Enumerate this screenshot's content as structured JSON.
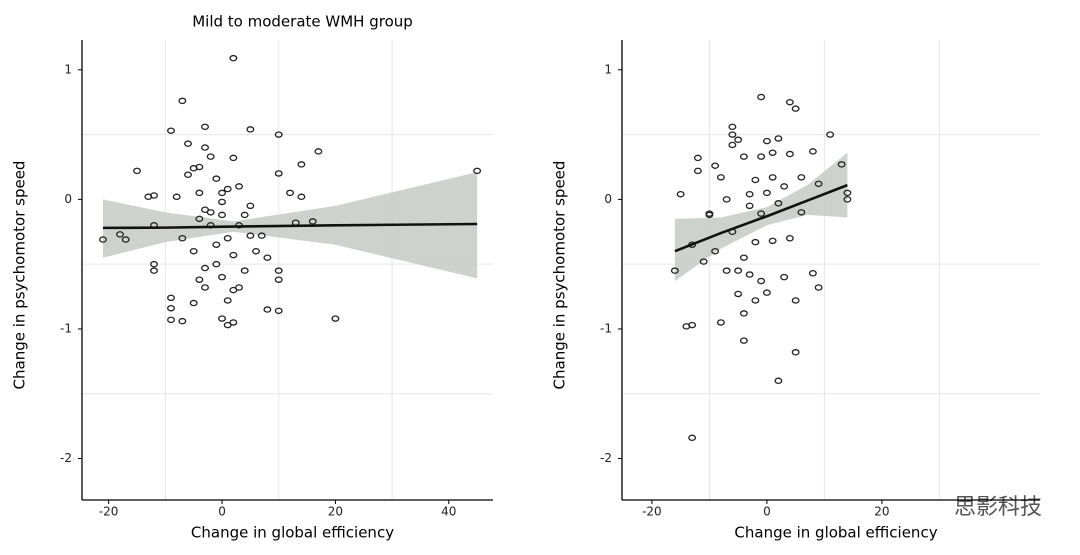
{
  "chart_data": [
    {
      "type": "scatter",
      "title": "Mild to moderate WMH group",
      "x_label": "Change in global efficiency",
      "y_label": "Change in psychomotor speed",
      "color": "#222222",
      "band_color": "#c6cac5",
      "line_color": "#111111",
      "xlim": [
        -24.7,
        47.8
      ],
      "ylim": [
        -2.32,
        1.23
      ],
      "xticks": [
        -20,
        0,
        20,
        40
      ],
      "yticks": [
        -2,
        -1,
        0,
        1
      ],
      "xgrid": [
        -10,
        10,
        30
      ],
      "ygrid": [
        -1.5,
        -0.5,
        0.5
      ],
      "x": [
        -21,
        -18,
        -17,
        -15,
        -13,
        -12,
        -12,
        -12,
        -12,
        -9,
        -9,
        -9,
        -9,
        -8,
        -7,
        -7,
        -7,
        -6,
        -6,
        -5,
        -5,
        -5,
        -4,
        -4,
        -4,
        -4,
        -3,
        -3,
        -3,
        -3,
        -3,
        -2,
        -2,
        -2,
        -1,
        -1,
        -1,
        0,
        0,
        0,
        0,
        0,
        1,
        1,
        1,
        1,
        2,
        2,
        2,
        2,
        2,
        3,
        3,
        3,
        4,
        4,
        5,
        5,
        5,
        6,
        7,
        8,
        8,
        10,
        10,
        10,
        10,
        10,
        12,
        13,
        14,
        14,
        16,
        17,
        20,
        45
      ],
      "values": [
        -0.31,
        -0.27,
        -0.31,
        0.22,
        0.02,
        0.03,
        -0.5,
        -0.55,
        -0.2,
        0.53,
        -0.76,
        -0.84,
        -0.93,
        0.02,
        0.76,
        -0.94,
        -0.3,
        0.43,
        0.19,
        0.24,
        -0.4,
        -0.8,
        0.25,
        0.05,
        -0.15,
        -0.62,
        0.56,
        0.4,
        -0.08,
        -0.53,
        -0.68,
        0.33,
        -0.2,
        -0.1,
        0.16,
        -0.35,
        -0.5,
        0.05,
        -0.02,
        -0.12,
        -0.6,
        -0.92,
        0.08,
        -0.3,
        -0.78,
        -0.97,
        1.09,
        0.32,
        -0.43,
        -0.7,
        -0.95,
        0.1,
        -0.2,
        -0.68,
        -0.12,
        -0.55,
        0.54,
        -0.05,
        -0.28,
        -0.4,
        -0.28,
        -0.45,
        -0.85,
        0.5,
        0.2,
        -0.55,
        -0.62,
        -0.86,
        0.05,
        -0.18,
        0.27,
        0.02,
        -0.17,
        0.37,
        -0.92,
        0.22
      ],
      "fit": {
        "x": [
          -21,
          -10,
          2,
          20,
          45
        ],
        "y": [
          -0.22,
          -0.218,
          -0.21,
          -0.2,
          -0.19
        ],
        "lower": [
          -0.45,
          -0.33,
          -0.25,
          -0.35,
          -0.61
        ],
        "upper": [
          0.0,
          -0.1,
          -0.17,
          -0.05,
          0.21
        ]
      }
    },
    {
      "type": "scatter",
      "x_label": "Change in global efficiency",
      "y_label": "Change in psychomotor speed",
      "color": "#222222",
      "band_color": "#c6cac5",
      "line_color": "#111111",
      "xlim": [
        -25.2,
        47.5
      ],
      "ylim": [
        -2.32,
        1.23
      ],
      "xticks": [
        -20,
        0,
        20
      ],
      "yticks": [
        -2,
        -1,
        0,
        1
      ],
      "xgrid": [
        -10,
        10,
        30
      ],
      "ygrid": [
        -1.5,
        -0.5,
        0.5
      ],
      "x": [
        -16,
        -15,
        -14,
        -13,
        -13,
        -13,
        -12,
        -12,
        -11,
        -10,
        -10,
        -9,
        -9,
        -8,
        -8,
        -7,
        -7,
        -6,
        -6,
        -6,
        -6,
        -5,
        -5,
        -5,
        -4,
        -4,
        -4,
        -4,
        -3,
        -3,
        -3,
        -2,
        -2,
        -2,
        -1,
        -1,
        -1,
        -1,
        0,
        0,
        0,
        1,
        1,
        1,
        2,
        2,
        2,
        3,
        3,
        4,
        4,
        4,
        5,
        5,
        5,
        6,
        6,
        8,
        8,
        9,
        9,
        11,
        13,
        14,
        14
      ],
      "values": [
        -0.55,
        0.04,
        -0.98,
        -0.97,
        -1.84,
        -0.35,
        0.32,
        0.22,
        -0.48,
        -0.12,
        -0.11,
        0.26,
        -0.4,
        0.17,
        -0.95,
        0.0,
        -0.55,
        0.56,
        0.5,
        0.42,
        -0.25,
        0.46,
        -0.55,
        -0.73,
        0.33,
        -0.45,
        -0.88,
        -1.09,
        0.04,
        -0.05,
        -0.58,
        0.15,
        -0.33,
        -0.78,
        0.79,
        0.33,
        -0.11,
        -0.63,
        0.45,
        0.05,
        -0.72,
        0.36,
        0.17,
        -0.32,
        0.47,
        -0.03,
        -1.4,
        0.1,
        -0.6,
        0.75,
        0.35,
        -0.3,
        0.7,
        -0.78,
        -1.18,
        0.17,
        -0.1,
        0.37,
        -0.57,
        0.12,
        -0.68,
        0.5,
        0.27,
        0.0,
        0.05
      ],
      "fit": {
        "x": [
          -16,
          -8,
          0,
          7,
          14
        ],
        "y": [
          -0.4,
          -0.26,
          -0.13,
          -0.01,
          0.11
        ],
        "lower": [
          -0.63,
          -0.38,
          -0.2,
          -0.12,
          -0.14
        ],
        "upper": [
          -0.15,
          -0.14,
          -0.06,
          0.11,
          0.36
        ]
      }
    }
  ],
  "watermark": "思影科技"
}
